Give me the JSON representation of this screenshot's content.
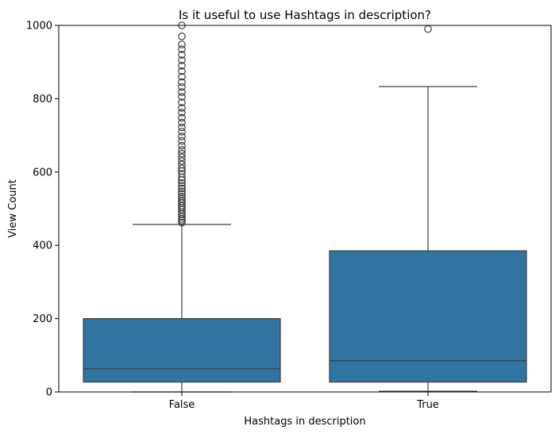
{
  "chart_data": {
    "type": "boxplot",
    "title": "Is it useful to use Hashtags in description?",
    "xlabel": "Hashtags in description",
    "ylabel": "View Count",
    "ylim": [
      0,
      1000
    ],
    "yticks": [
      0,
      200,
      400,
      600,
      800,
      1000
    ],
    "grid": false,
    "colors": {
      "box": "#3274a1",
      "line": "#3d3d3d"
    },
    "categories": [
      "False",
      "True"
    ],
    "boxes": [
      {
        "category": "False",
        "whisker_low": 0,
        "q1": 27,
        "median": 63,
        "q3": 200,
        "whisker_high": 457,
        "outliers": [
          462,
          467,
          472,
          478,
          485,
          490,
          497,
          503,
          508,
          515,
          520,
          527,
          533,
          540,
          547,
          555,
          562,
          570,
          578,
          585,
          595,
          603,
          610,
          620,
          630,
          640,
          650,
          660,
          672,
          685,
          697,
          710,
          722,
          735,
          748,
          762,
          775,
          790,
          805,
          818,
          832,
          845,
          860,
          875,
          890,
          905,
          920,
          935,
          948,
          970,
          1000
        ]
      },
      {
        "category": "True",
        "whisker_low": 2,
        "q1": 27,
        "median": 85,
        "q3": 385,
        "whisker_high": 833,
        "outliers": [
          990
        ]
      }
    ]
  }
}
